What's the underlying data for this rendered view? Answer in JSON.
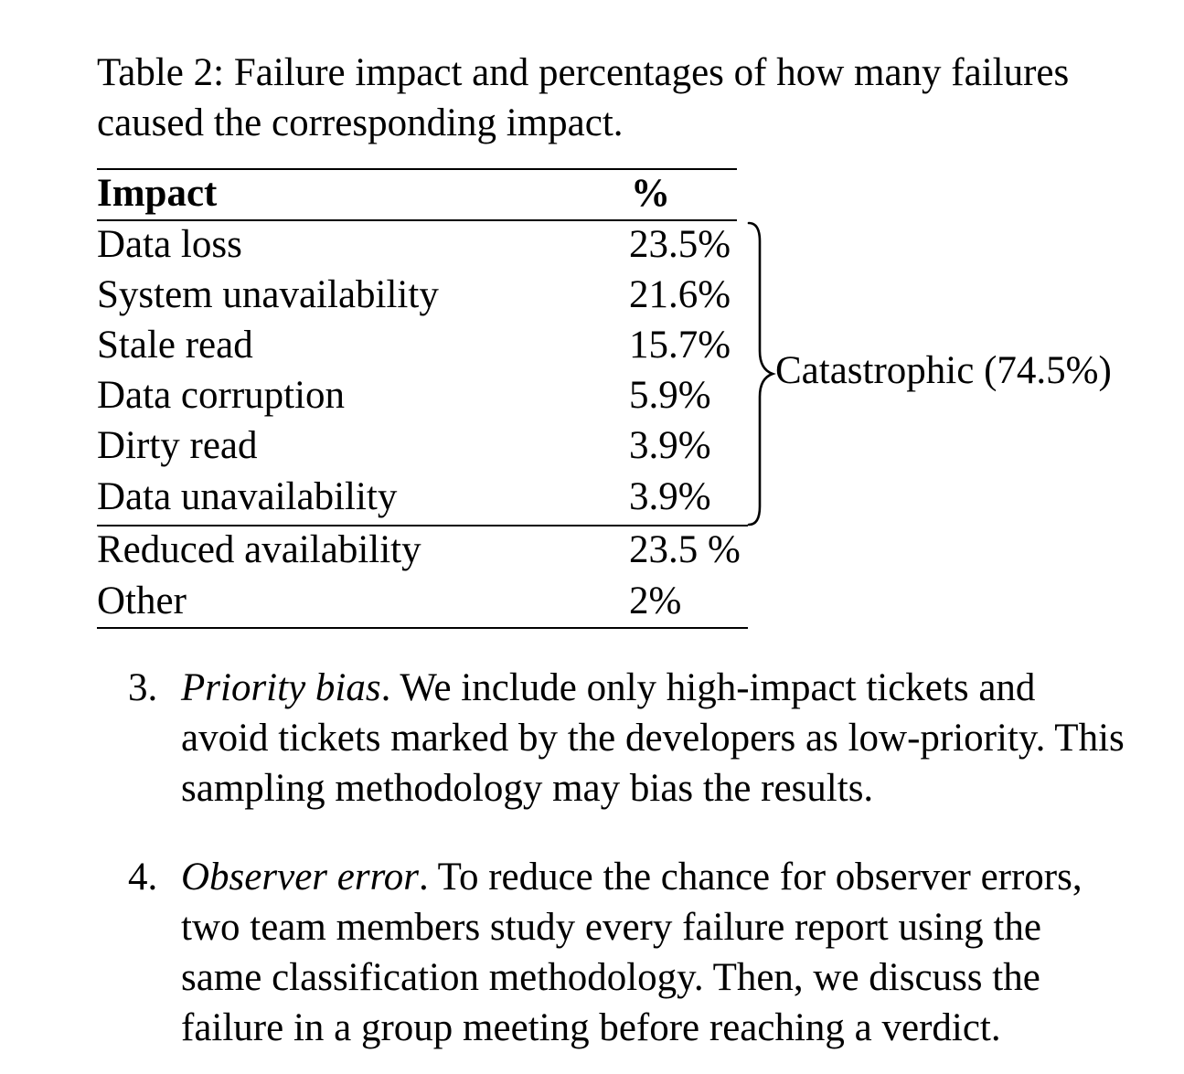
{
  "caption": "Table 2: Failure impact and percentages of how many failures caused the corresponding impact.",
  "table": {
    "headers": {
      "impact": "Impact",
      "percent": "%"
    },
    "rows": [
      {
        "impact": "Data loss",
        "percent": "23.5%"
      },
      {
        "impact": "System unavailability",
        "percent": "21.6%"
      },
      {
        "impact": "Stale read",
        "percent": "15.7%"
      },
      {
        "impact": "Data corruption",
        "percent": "5.9%"
      },
      {
        "impact": "Dirty read",
        "percent": "3.9%"
      },
      {
        "impact": "Data unavailability",
        "percent": "3.9%"
      },
      {
        "impact": "Reduced availability",
        "percent": "23.5 %"
      },
      {
        "impact": "Other",
        "percent": "2%"
      }
    ],
    "brace_label": "Catastrophic (74.5%)"
  },
  "list": [
    {
      "number": "3.",
      "title": "Priority bias",
      "text": ". We include only high-impact tickets and avoid tickets marked by the developers as low-priority. This sampling methodology may bias the results."
    },
    {
      "number": "4.",
      "title": "Observer error",
      "text": ". To reduce the chance for observer errors, two team members study every failure report using the same classification methodology. Then, we discuss the failure in a group meeting before reaching a verdict."
    }
  ]
}
